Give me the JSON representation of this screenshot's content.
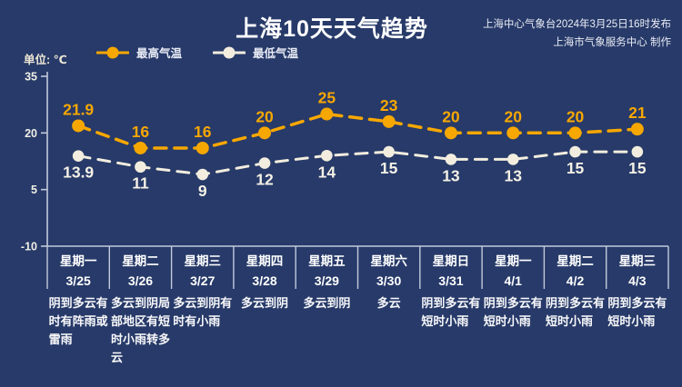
{
  "header": {
    "title": "上海10天天气趋势",
    "source_line1": "上海中心气象台2024年3月25日16时发布",
    "source_line2": "上海市气象服务中心 制作"
  },
  "unit_label": "单位: ℃",
  "legend": {
    "items": [
      {
        "label": "最高气温",
        "color": "#F7A701"
      },
      {
        "label": "最低气温",
        "color": "#F2EDDE"
      }
    ]
  },
  "chart_data": {
    "type": "line",
    "categories": [
      "3/25",
      "3/26",
      "3/27",
      "3/28",
      "3/29",
      "3/30",
      "3/31",
      "4/1",
      "4/2",
      "4/3"
    ],
    "series": [
      {
        "name": "最高气温",
        "color": "#F7A701",
        "label_color": "#F7A701",
        "values": [
          21.9,
          16,
          16,
          20,
          25,
          23,
          20,
          20,
          20,
          21
        ]
      },
      {
        "name": "最低气温",
        "color": "#F2EDDE",
        "label_color": "#F5F1E6",
        "values": [
          13.9,
          11,
          9,
          12,
          14,
          15,
          13,
          13,
          15,
          15
        ]
      }
    ],
    "title": "上海10天天气趋势",
    "ylabel": "单位: ℃",
    "yticks": [
      35,
      20,
      5,
      -10
    ],
    "ylim": [
      -10,
      35
    ],
    "grid": false,
    "legend_position": "top",
    "line_style": "dashed"
  },
  "days": [
    {
      "weekday": "星期一",
      "date": "3/25",
      "weather": "阴到多云有\n时有阵雨或\n雷雨"
    },
    {
      "weekday": "星期二",
      "date": "3/26",
      "weather": "多云到阴局\n部地区有短\n时小雨转多\n云"
    },
    {
      "weekday": "星期三",
      "date": "3/27",
      "weather": "多云到阴有\n时有小雨"
    },
    {
      "weekday": "星期四",
      "date": "3/28",
      "weather": "多云到阴"
    },
    {
      "weekday": "星期五",
      "date": "3/29",
      "weather": "多云到阴"
    },
    {
      "weekday": "星期六",
      "date": "3/30",
      "weather": "多云"
    },
    {
      "weekday": "星期日",
      "date": "3/31",
      "weather": "阴到多云有\n短时小雨"
    },
    {
      "weekday": "星期一",
      "date": "4/1",
      "weather": "阴到多云有\n短时小雨"
    },
    {
      "weekday": "星期二",
      "date": "4/2",
      "weather": "阴到多云有\n短时小雨"
    },
    {
      "weekday": "星期三",
      "date": "4/3",
      "weather": "阴到多云有\n短时小雨"
    }
  ],
  "colors": {
    "background": "#273A69",
    "high": "#F7A701",
    "low": "#F2EDDE",
    "axis_line": "#C3CADC",
    "tick_label": "#F0EFE6",
    "day_text": "#FFFFFF"
  }
}
